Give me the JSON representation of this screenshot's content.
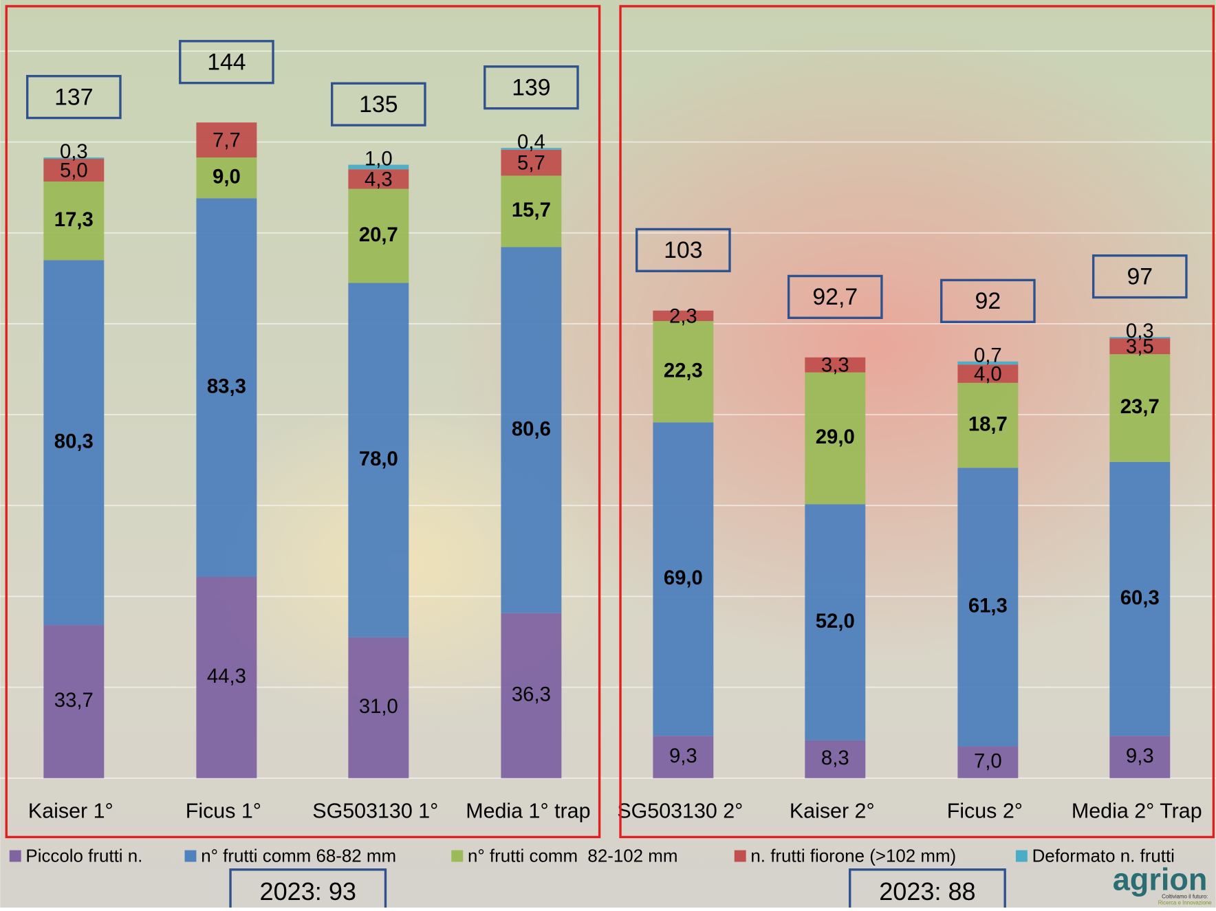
{
  "chart_data": {
    "type": "stacked-bar",
    "categories": [
      "Kaiser 1°",
      "Ficus 1°",
      "SG503130 1°",
      "Media 1° trap",
      "SG503130 2°",
      "Kaiser 2°",
      "Ficus 2°",
      "Media 2° Trap"
    ],
    "series": [
      {
        "name": "Piccolo frutti n.",
        "color": "#8064a2",
        "values": [
          33.7,
          44.3,
          31.0,
          36.3,
          9.3,
          8.3,
          7.0,
          9.3
        ],
        "value_labels": [
          "33,7",
          "44,3",
          "31,0",
          "36,3",
          "9,3",
          "8,3",
          "7,0",
          "9,3"
        ]
      },
      {
        "name": "n° frutti comm 68-82 mm",
        "color": "#4f81bd",
        "values": [
          80.3,
          83.3,
          78.0,
          80.6,
          69.0,
          52.0,
          61.3,
          60.3
        ],
        "value_labels": [
          "80,3",
          "83,3",
          "78,0",
          "80,6",
          "69,0",
          "52,0",
          "61,3",
          "60,3"
        ]
      },
      {
        "name": "n° frutti comm  82-102 mm",
        "color": "#9bbb59",
        "values": [
          17.3,
          9.0,
          20.7,
          15.7,
          22.3,
          29.0,
          18.7,
          23.7
        ],
        "value_labels": [
          "17,3",
          "9,0",
          "20,7",
          "15,7",
          "22,3",
          "29,0",
          "18,7",
          "23,7"
        ]
      },
      {
        "name": "n. frutti fiorone (>102 mm)",
        "color": "#c0504d",
        "values": [
          5.0,
          7.7,
          4.3,
          5.7,
          2.3,
          3.3,
          4.0,
          3.5
        ],
        "value_labels": [
          "5,0",
          "7,7",
          "4,3",
          "5,7",
          "2,3",
          "3,3",
          "4,0",
          "3,5"
        ]
      },
      {
        "name": "Deformato n. frutti",
        "color": "#4bacc6",
        "values": [
          0.3,
          null,
          1.0,
          0.4,
          null,
          null,
          0.7,
          0.3
        ],
        "value_labels": [
          "0,3",
          null,
          "1,0",
          "0,4",
          null,
          null,
          "0,7",
          "0,3"
        ]
      }
    ],
    "total_labels": [
      "137",
      "144",
      "135",
      "139",
      "103",
      "92,7",
      "92",
      "97"
    ],
    "group_labels": [
      "2023: 93",
      "2023: 88"
    ],
    "ylim": [
      0,
      160
    ],
    "yticks": [
      0,
      20,
      40,
      60,
      80,
      100,
      120,
      140,
      160
    ],
    "grid": true
  },
  "logo": {
    "name": "agrion",
    "tagline": "Coltiviamo il futuro:",
    "subtagline": "Ricerca e Innovazione"
  }
}
